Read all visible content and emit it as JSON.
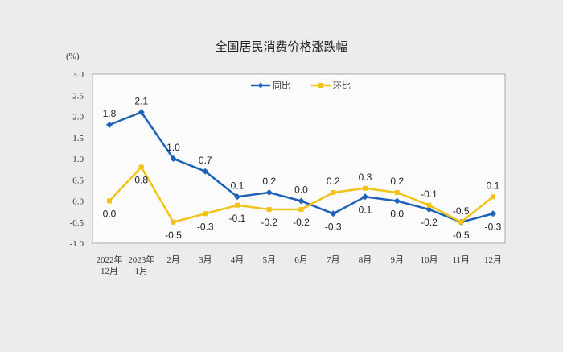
{
  "chart_data": {
    "type": "line",
    "title": "全国居民消费价格涨跌幅",
    "ylabel": "(%)",
    "ylim": [
      -1.0,
      3.0
    ],
    "yticks": [
      "3.0",
      "2.5",
      "2.0",
      "1.5",
      "1.0",
      "0.5",
      "0.0",
      "-0.5",
      "-1.0"
    ],
    "categories": [
      [
        "2022年",
        "12月"
      ],
      [
        "2023年",
        "1月"
      ],
      [
        "2月"
      ],
      [
        "3月"
      ],
      [
        "4月"
      ],
      [
        "5月"
      ],
      [
        "6月"
      ],
      [
        "7月"
      ],
      [
        "8月"
      ],
      [
        "9月"
      ],
      [
        "10月"
      ],
      [
        "11月"
      ],
      [
        "12月"
      ]
    ],
    "series": [
      {
        "name": "同比",
        "color": "#1f63b8",
        "marker": "diamond",
        "values": [
          1.8,
          2.1,
          1.0,
          0.7,
          0.1,
          0.2,
          0.0,
          -0.3,
          0.1,
          0.0,
          -0.2,
          -0.5,
          -0.3
        ]
      },
      {
        "name": "环比",
        "color": "#f2c31b",
        "marker": "square",
        "values": [
          0.0,
          0.8,
          -0.5,
          -0.3,
          -0.1,
          -0.2,
          -0.2,
          0.2,
          0.3,
          0.2,
          -0.1,
          -0.5,
          0.1
        ]
      }
    ],
    "legend": "top-center",
    "grid": false
  }
}
